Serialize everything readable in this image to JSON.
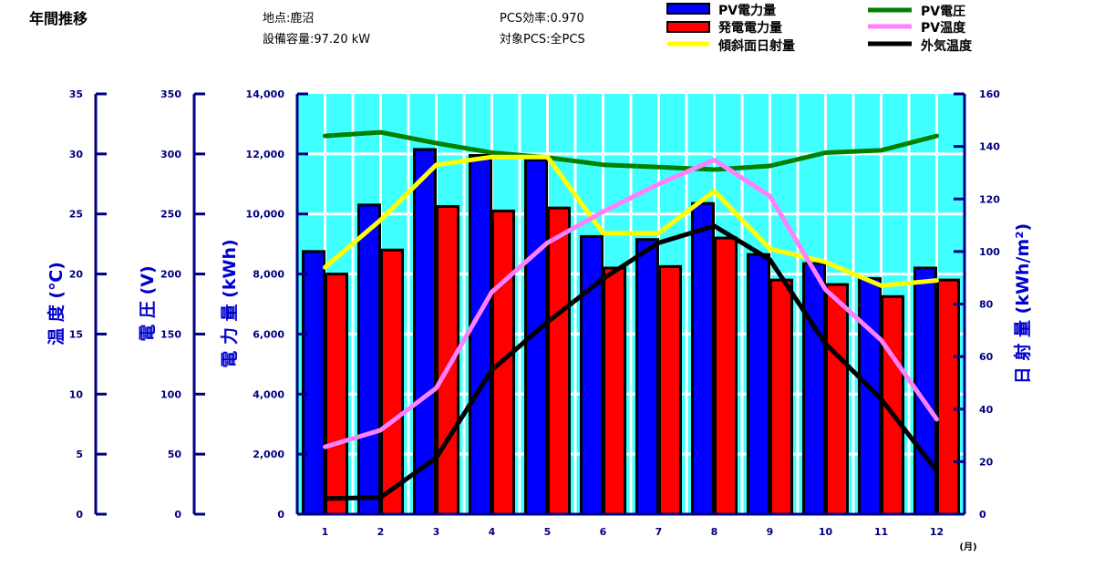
{
  "header": {
    "title": "年間推移",
    "location": "地点:鹿沼",
    "capacity": "設備容量:97.20 kW",
    "efficiency": "PCS効率:0.970",
    "target": "対象PCS:全PCS"
  },
  "colors": {
    "plot_bg": "#40ffff",
    "axis": "#000080",
    "label": "#0000cc",
    "grid": "#ffffff",
    "pv_power": "#0000ff",
    "gen_power": "#ff0000",
    "irradiance": "#ffff00",
    "pv_voltage": "#008000",
    "pv_temp": "#ff80ff",
    "outside_temp": "#000000"
  },
  "chart_data": {
    "type": "bar",
    "categories": [
      "1",
      "2",
      "3",
      "4",
      "5",
      "6",
      "7",
      "8",
      "9",
      "10",
      "11",
      "12"
    ],
    "x_unit": "(月)",
    "axes": {
      "temperature": {
        "label": "温 度 (℃)",
        "ylim": [
          0,
          35
        ],
        "ticks": [
          "0",
          "5",
          "10",
          "15",
          "20",
          "25",
          "30",
          "35"
        ]
      },
      "voltage": {
        "label": "電 圧 (V)",
        "ylim": [
          0,
          350
        ],
        "ticks": [
          "0",
          "50",
          "100",
          "150",
          "200",
          "250",
          "300",
          "350"
        ]
      },
      "power": {
        "label": "電 力 量 (kWh)",
        "ylim": [
          0,
          14000
        ],
        "ticks": [
          "0",
          "2,000",
          "4,000",
          "6,000",
          "8,000",
          "10,000",
          "12,000",
          "14,000"
        ]
      },
      "irradiance": {
        "label": "日 射 量 (kWh/m²)",
        "ylim": [
          0,
          160
        ],
        "ticks": [
          "0",
          "20",
          "40",
          "60",
          "80",
          "100",
          "120",
          "140",
          "160"
        ]
      }
    },
    "bar_series": [
      {
        "name": "PV電力量",
        "axis": "power",
        "values": [
          8750,
          10300,
          12150,
          11950,
          11800,
          9250,
          9150,
          10350,
          8650,
          8350,
          7850,
          8200
        ]
      },
      {
        "name": "発電電力量",
        "axis": "power",
        "values": [
          8000,
          8800,
          10250,
          10100,
          10200,
          8200,
          8250,
          9200,
          7800,
          7650,
          7250,
          7800
        ]
      }
    ],
    "line_series": [
      {
        "name": "PV電圧",
        "axis": "voltage",
        "values": [
          315,
          318,
          309,
          301,
          297,
          291,
          289,
          287,
          290,
          301,
          303,
          315
        ]
      },
      {
        "name": "PV温度",
        "axis": "temperature",
        "values": [
          5.6,
          7.0,
          10.5,
          18.5,
          22.6,
          25.2,
          27.5,
          29.5,
          26.5,
          18.7,
          14.5,
          7.9
        ]
      },
      {
        "name": "傾斜面日射量",
        "axis": "irradiance",
        "values": [
          94,
          112,
          133,
          136,
          136,
          107,
          107,
          123,
          101,
          96,
          87,
          89
        ]
      },
      {
        "name": "外気温度",
        "axis": "temperature",
        "values": [
          1.3,
          1.4,
          4.7,
          12.0,
          16.0,
          19.6,
          22.6,
          24.0,
          21.2,
          14.2,
          9.6,
          3.6
        ]
      }
    ]
  }
}
